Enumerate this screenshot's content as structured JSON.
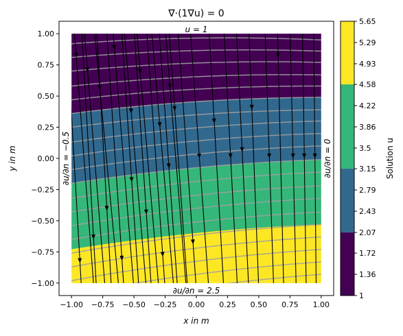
{
  "chart_data": {
    "type": "heatmap",
    "title": "∇·(1∇u) = 0",
    "xlabel": "x in m",
    "ylabel": "y in m",
    "xlim": [
      -1.1,
      1.1
    ],
    "ylim": [
      -1.1,
      1.1
    ],
    "domain": {
      "x": [
        -1,
        1
      ],
      "y": [
        -1,
        1
      ]
    },
    "x_ticks": [
      -1.0,
      -0.75,
      -0.5,
      -0.25,
      0.0,
      0.25,
      0.5,
      0.75,
      1.0
    ],
    "y_ticks": [
      -1.0,
      -0.75,
      -0.5,
      -0.25,
      0.0,
      0.25,
      0.5,
      0.75,
      1.0
    ],
    "x_tick_labels": [
      "−1.00",
      "−0.75",
      "−0.50",
      "−0.25",
      "0.00",
      "0.25",
      "0.50",
      "0.75",
      "1.00"
    ],
    "y_tick_labels": [
      "−1.00",
      "−0.75",
      "−0.50",
      "−0.25",
      "0.00",
      "0.25",
      "0.50",
      "0.75",
      "1.00"
    ],
    "boundary_labels": {
      "top": "u = 1",
      "bottom": "∂u/∂n = 2.5",
      "left": "∂u/∂n = −0.5",
      "right": "∂u/∂n = 0"
    },
    "colorbar": {
      "label": "Solution u",
      "min": 1,
      "max": 5.65,
      "tick_values": [
        1,
        1.36,
        1.72,
        2.07,
        2.43,
        2.79,
        3.15,
        3.5,
        3.86,
        4.22,
        4.58,
        4.93,
        5.29,
        5.65
      ],
      "tick_labels": [
        "1",
        "1.36",
        "1.72",
        "2.07",
        "2.43",
        "2.79",
        "3.15",
        "3.5",
        "3.86",
        "4.22",
        "4.58",
        "4.93",
        "5.29",
        "5.65"
      ],
      "levels": [
        1,
        2.07,
        3.15,
        4.58,
        5.65
      ],
      "colors": [
        "#440154",
        "#31688e",
        "#35b779",
        "#fde725"
      ]
    },
    "band_boundaries": [
      {
        "value": 2.07,
        "y_at_x_minus1": 0.36,
        "y_at_x_plus1": 0.49
      },
      {
        "value": 3.15,
        "y_at_x_minus1": -0.2,
        "y_at_x_plus1": -0.01
      },
      {
        "value": 4.58,
        "y_at_x_minus1": -0.73,
        "y_at_x_plus1": -0.53
      }
    ],
    "isolines": [
      {
        "y_at_x_minus1": 0.92,
        "y_at_x_plus1": 0.95
      },
      {
        "y_at_x_minus1": 0.81,
        "y_at_x_plus1": 0.86
      },
      {
        "y_at_x_minus1": 0.7,
        "y_at_x_plus1": 0.77
      },
      {
        "y_at_x_minus1": 0.58,
        "y_at_x_plus1": 0.67
      },
      {
        "y_at_x_minus1": 0.47,
        "y_at_x_plus1": 0.58
      },
      {
        "y_at_x_minus1": 0.36,
        "y_at_x_plus1": 0.49
      },
      {
        "y_at_x_minus1": 0.25,
        "y_at_x_plus1": 0.39
      },
      {
        "y_at_x_minus1": 0.13,
        "y_at_x_plus1": 0.3
      },
      {
        "y_at_x_minus1": 0.02,
        "y_at_x_plus1": 0.2
      },
      {
        "y_at_x_minus1": -0.09,
        "y_at_x_plus1": 0.1
      },
      {
        "y_at_x_minus1": -0.2,
        "y_at_x_plus1": -0.01
      },
      {
        "y_at_x_minus1": -0.32,
        "y_at_x_plus1": -0.11
      },
      {
        "y_at_x_minus1": -0.43,
        "y_at_x_plus1": -0.22
      },
      {
        "y_at_x_minus1": -0.54,
        "y_at_x_plus1": -0.32
      },
      {
        "y_at_x_minus1": -0.65,
        "y_at_x_plus1": -0.43
      },
      {
        "y_at_x_minus1": -0.76,
        "y_at_x_plus1": -0.53
      },
      {
        "y_at_x_minus1": -0.87,
        "y_at_x_plus1": -0.63
      },
      {
        "y_at_x_minus1": -0.98,
        "y_at_x_plus1": -0.73
      },
      {
        "y_at_x_minus1": -1.09,
        "y_at_x_plus1": -0.83
      },
      {
        "y_at_x_minus1": -1.2,
        "y_at_x_plus1": -0.93
      }
    ],
    "isoline_color": "#a0a0a0",
    "streamlines": [
      {
        "x_start": -0.98,
        "x_end": -0.82,
        "arrow_y": 0.83
      },
      {
        "x_start": -0.9,
        "x_end": -0.73,
        "arrow_y": 0.71
      },
      {
        "x_start": -0.82,
        "x_end": -0.62,
        "arrow_y": 0.57
      },
      {
        "x_start": -0.67,
        "x_end": -0.5,
        "arrow_y": 0.89
      },
      {
        "x_start": -0.58,
        "x_end": -0.4,
        "arrow_y": 0.38
      },
      {
        "x_start": -0.48,
        "x_end": -0.3,
        "arrow_y": 0.7
      },
      {
        "x_start": -0.36,
        "x_end": -0.18,
        "arrow_y": 0.27
      },
      {
        "x_start": -0.25,
        "x_end": -0.08,
        "arrow_y": 0.58
      },
      {
        "x_start": -0.15,
        "x_end": 0.0,
        "arrow_y": -0.67
      },
      {
        "x_start": -0.05,
        "x_end": 0.1,
        "arrow_y": 0.02
      },
      {
        "x_start": 0.1,
        "x_end": 0.22,
        "arrow_y": 0.3
      },
      {
        "x_start": 0.22,
        "x_end": 0.33,
        "arrow_y": 0.02
      },
      {
        "x_start": 0.32,
        "x_end": 0.42,
        "arrow_y": 0.07
      },
      {
        "x_start": 0.42,
        "x_end": 0.5,
        "arrow_y": 0.41
      },
      {
        "x_start": 0.55,
        "x_end": 0.62,
        "arrow_y": 0.02
      },
      {
        "x_start": 0.65,
        "x_end": 0.7,
        "arrow_y": 0.83
      },
      {
        "x_start": 0.75,
        "x_end": 0.8,
        "arrow_y": 0.02
      },
      {
        "x_start": 0.85,
        "x_end": 0.88,
        "arrow_y": 0.02
      },
      {
        "x_start": 0.94,
        "x_end": 0.96,
        "arrow_y": 0.02
      },
      {
        "x_start": -1.04,
        "x_end": -0.92,
        "arrow_y": -0.82
      },
      {
        "x_start": -0.92,
        "x_end": -0.8,
        "arrow_y": -0.63
      },
      {
        "x_start": -0.8,
        "x_end": -0.68,
        "arrow_y": -0.4
      },
      {
        "x_start": -0.72,
        "x_end": -0.58,
        "arrow_y": -0.8
      },
      {
        "x_start": -0.6,
        "x_end": -0.46,
        "arrow_y": -0.17
      },
      {
        "x_start": -0.5,
        "x_end": -0.36,
        "arrow_y": -0.43
      },
      {
        "x_start": -0.4,
        "x_end": -0.25,
        "arrow_y": -0.77
      },
      {
        "x_start": -0.3,
        "x_end": -0.15,
        "arrow_y": -0.06
      },
      {
        "x_start": -0.22,
        "x_end": -0.07,
        "arrow_y": 0.4
      }
    ],
    "streamline_color": "#000000",
    "plot_background": "#ffffff",
    "grid": false
  }
}
